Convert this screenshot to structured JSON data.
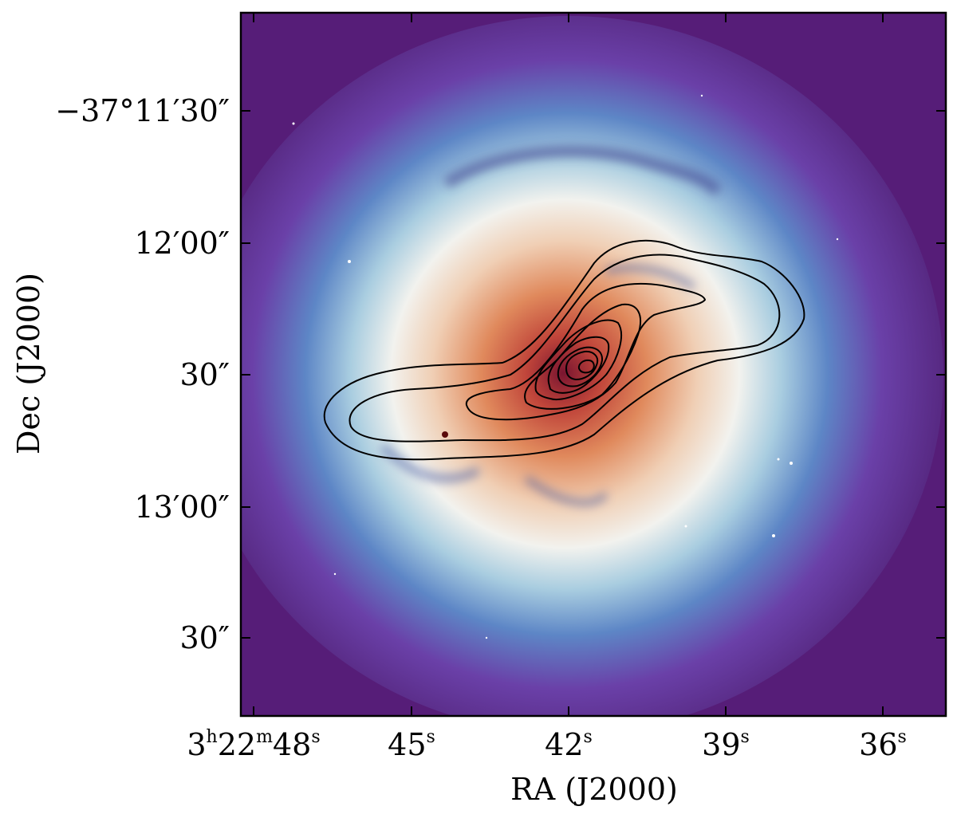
{
  "figure": {
    "type": "astronomical-image-with-contours",
    "colormap": "spectral (purple-blue-white-orange-red)",
    "contour_color": "#000000",
    "contour_levels_count": 9,
    "xlabel": "RA (J2000)",
    "ylabel": "Dec (J2000)",
    "x_ticks": [
      {
        "main": "3",
        "sup1": "h",
        "mid": "22",
        "sup2": "m",
        "end": "48",
        "sup3": "s"
      },
      {
        "main": "45",
        "sup1": "s"
      },
      {
        "main": "42",
        "sup1": "s"
      },
      {
        "main": "39",
        "sup1": "s"
      },
      {
        "main": "36",
        "sup1": "s"
      }
    ],
    "y_ticks": [
      "−37°11′30″",
      "12′00″",
      "30″",
      "13′00″",
      "30″"
    ]
  }
}
